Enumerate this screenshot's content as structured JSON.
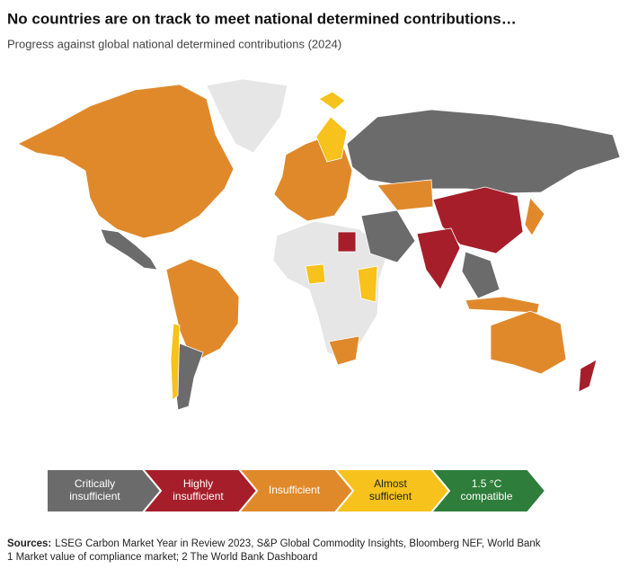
{
  "header": {
    "title": "No countries are on track to meet national determined contributions…",
    "subtitle": "Progress against global national determined contributions (2024)"
  },
  "legend": {
    "items": [
      {
        "lines": [
          "Critically",
          "insufficient"
        ],
        "color": "#6b6b6b"
      },
      {
        "lines": [
          "Highly",
          "insufficient"
        ],
        "color": "#a71e2b"
      },
      {
        "lines": [
          "Insufficient"
        ],
        "color": "#e0892b"
      },
      {
        "lines": [
          "Almost",
          "sufficient"
        ],
        "color": "#f6c21b"
      },
      {
        "lines": [
          "1.5 °C",
          "compatible"
        ],
        "color": "#2e7d3a"
      }
    ]
  },
  "footer": {
    "sources_label": "Sources:",
    "sources": "LSEG Carbon Market Year in Review 2023, S&P Global Commodity Insights, Bloomberg NEF, World Bank",
    "note": "1 Market value of compliance market; 2 The World Bank Dashboard"
  }
}
